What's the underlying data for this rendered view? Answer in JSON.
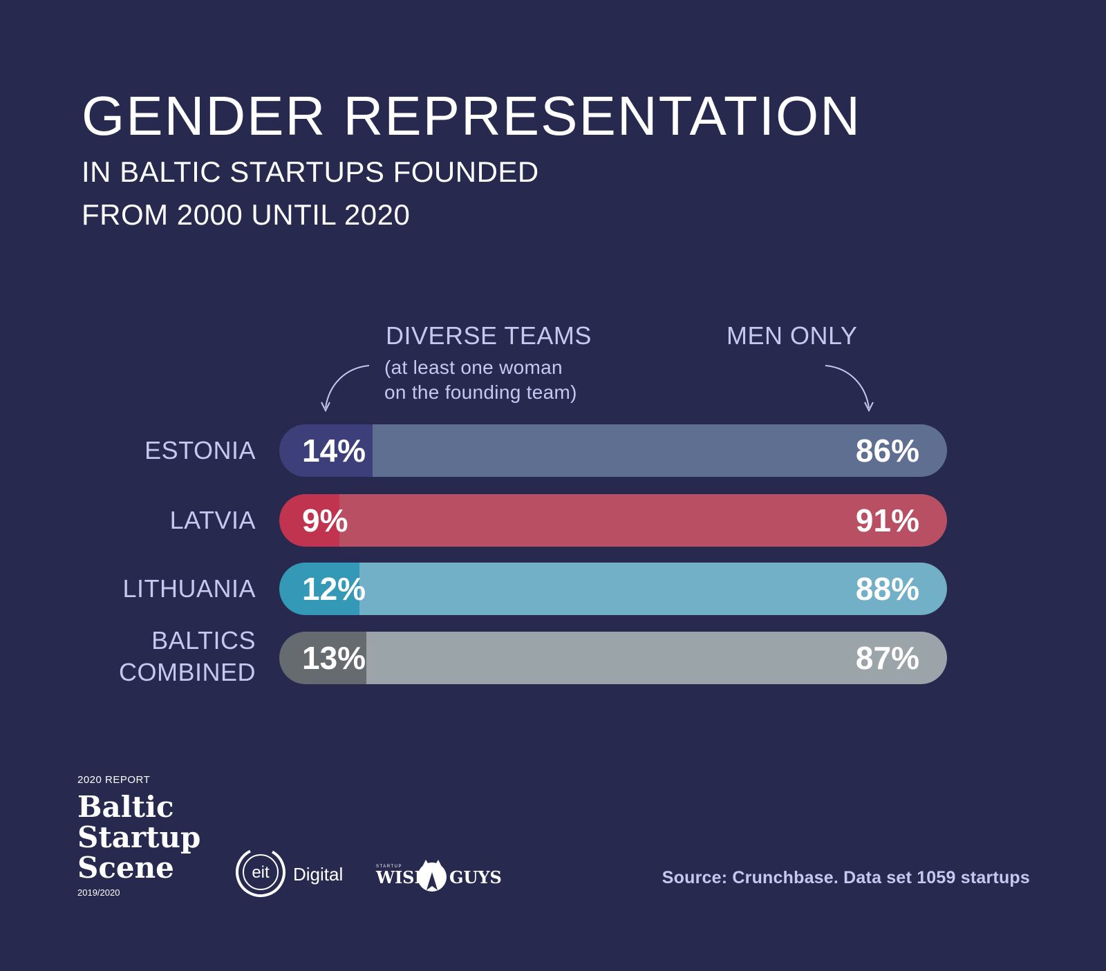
{
  "header": {
    "title": "GENDER REPRESENTATION",
    "subtitle_line1": "IN BALTIC STARTUPS FOUNDED",
    "subtitle_line2": "FROM 2000 UNTIL 2020"
  },
  "legend": {
    "diverse_label": "DIVERSE TEAMS",
    "diverse_note_line1": "(at least one woman",
    "diverse_note_line2": "on the founding team)",
    "men_label": "MEN ONLY"
  },
  "chart_data": {
    "type": "bar",
    "orientation": "horizontal",
    "stacked": true,
    "unit": "%",
    "categories": [
      "ESTONIA",
      "LATVIA",
      "LITHUANIA",
      "BALTICS COMBINED"
    ],
    "series": [
      {
        "name": "DIVERSE TEAMS",
        "values": [
          14,
          9,
          12,
          13
        ]
      },
      {
        "name": "MEN ONLY",
        "values": [
          86,
          91,
          88,
          87
        ]
      }
    ],
    "value_labels": {
      "diverse": [
        "14%",
        "9%",
        "12%",
        "13%"
      ],
      "men": [
        "86%",
        "91%",
        "88%",
        "87%"
      ]
    },
    "colors": [
      {
        "diverse": "#3d3f7a",
        "men": "#5f6f92"
      },
      {
        "diverse": "#c0344f",
        "men": "#b94f62"
      },
      {
        "diverse": "#3499b6",
        "men": "#71b0c6"
      },
      {
        "diverse": "#666b6f",
        "men": "#9ba4a8"
      }
    ],
    "title": "GENDER REPRESENTATION",
    "xlim": [
      0,
      100
    ]
  },
  "rows": [
    {
      "label_line1": "ESTONIA",
      "label_line2": ""
    },
    {
      "label_line1": "LATVIA",
      "label_line2": ""
    },
    {
      "label_line1": "LITHUANIA",
      "label_line2": ""
    },
    {
      "label_line1": "BALTICS",
      "label_line2": "COMBINED"
    }
  ],
  "footer": {
    "report_label": "2020 REPORT",
    "brand_line1": "Baltic",
    "brand_line2": "Startup",
    "brand_line3": "Scene",
    "brand_year": "2019/2020",
    "eit_logo_text": "eit",
    "eit_word": "Digital",
    "wise_small": "STARTUP",
    "wise_left": "WISE",
    "wise_right": "GUYS",
    "source": "Source: Crunchbase. Data set 1059 startups"
  },
  "colors": {
    "background": "#27294f",
    "accent_text": "#c7c8f2"
  }
}
